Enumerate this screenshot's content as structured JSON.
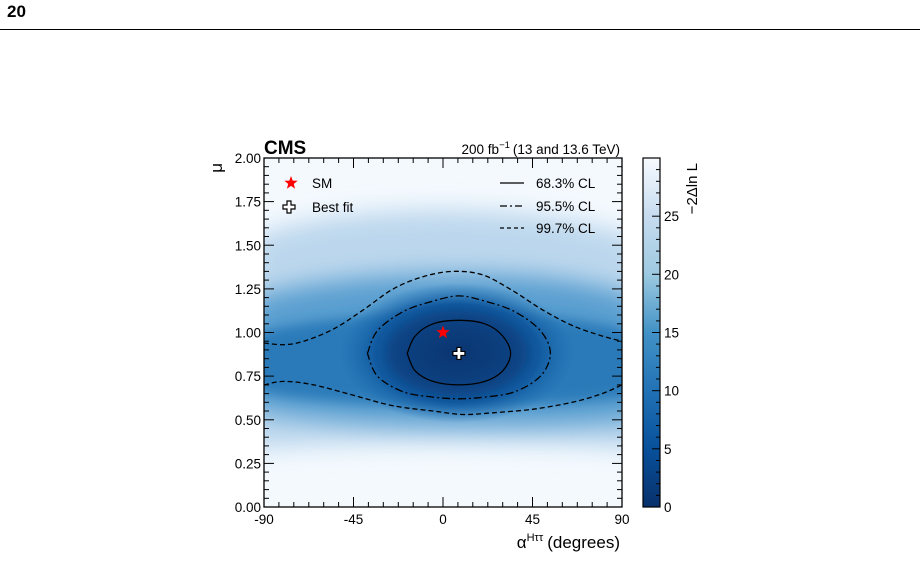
{
  "page": {
    "number": "20"
  },
  "colors": {
    "dark_blue": "#08306b",
    "mid_blue": "#2a7ab9",
    "light_blue": "#f4f9fe",
    "sm_marker": "#ff0000",
    "best_fit_marker": "#ffffff"
  },
  "chart_data": {
    "type": "heatmap",
    "experiment": "CMS",
    "luminosity": "200 fb",
    "lumi_sup": "−1",
    "energy": "(13 and 13.6 TeV)",
    "xlabel": "α",
    "xlabel_sup": "Hττ",
    "xlabel_units": "(degrees)",
    "ylabel": "μ",
    "xlim": [
      -90,
      90
    ],
    "ylim": [
      0,
      2
    ],
    "xticks": [
      "-90",
      "-45",
      "0",
      "45",
      "90"
    ],
    "yticks": [
      "0.00",
      "0.25",
      "0.50",
      "0.75",
      "1.00",
      "1.25",
      "1.50",
      "1.75",
      "2.00"
    ],
    "colorbar": {
      "label": "−2Δln L",
      "range": [
        0,
        30
      ],
      "ticks": [
        "0",
        "5",
        "10",
        "15",
        "20",
        "25"
      ],
      "colormap": "Blues (reversed)"
    },
    "points": {
      "sm": {
        "label": "SM",
        "x": 0,
        "y": 1.0
      },
      "best_fit": {
        "label": "Best fit",
        "x": 8,
        "y": 0.88
      }
    },
    "contours": [
      {
        "label": "68.3% CL",
        "style": "solid",
        "points": [
          [
            -18,
            0.88
          ],
          [
            -14,
            0.98
          ],
          [
            -5,
            1.05
          ],
          [
            8,
            1.07
          ],
          [
            21,
            1.05
          ],
          [
            30,
            0.98
          ],
          [
            34,
            0.88
          ],
          [
            30,
            0.78
          ],
          [
            21,
            0.72
          ],
          [
            8,
            0.7
          ],
          [
            -5,
            0.72
          ],
          [
            -14,
            0.78
          ],
          [
            -18,
            0.88
          ]
        ]
      },
      {
        "label": "95.5% CL",
        "style": "dashdot",
        "points": [
          [
            -38,
            0.88
          ],
          [
            -33,
            1.01
          ],
          [
            -20,
            1.12
          ],
          [
            -5,
            1.18
          ],
          [
            8,
            1.21
          ],
          [
            21,
            1.18
          ],
          [
            36,
            1.12
          ],
          [
            49,
            1.01
          ],
          [
            54,
            0.88
          ],
          [
            49,
            0.75
          ],
          [
            36,
            0.66
          ],
          [
            21,
            0.63
          ],
          [
            8,
            0.62
          ],
          [
            -5,
            0.63
          ],
          [
            -20,
            0.66
          ],
          [
            -33,
            0.75
          ],
          [
            -38,
            0.88
          ]
        ]
      },
      {
        "label": "99.7% CL",
        "style": "dashed",
        "open": true,
        "upper": [
          [
            -90,
            0.94
          ],
          [
            -80,
            0.93
          ],
          [
            -70,
            0.95
          ],
          [
            -55,
            1.02
          ],
          [
            -40,
            1.13
          ],
          [
            -25,
            1.25
          ],
          [
            -10,
            1.32
          ],
          [
            5,
            1.35
          ],
          [
            20,
            1.33
          ],
          [
            35,
            1.24
          ],
          [
            50,
            1.13
          ],
          [
            65,
            1.04
          ],
          [
            80,
            0.98
          ],
          [
            90,
            0.95
          ]
        ],
        "lower": [
          [
            -90,
            0.7
          ],
          [
            -80,
            0.72
          ],
          [
            -65,
            0.7
          ],
          [
            -45,
            0.64
          ],
          [
            -25,
            0.58
          ],
          [
            -5,
            0.55
          ],
          [
            10,
            0.53
          ],
          [
            25,
            0.54
          ],
          [
            45,
            0.56
          ],
          [
            65,
            0.6
          ],
          [
            80,
            0.65
          ],
          [
            90,
            0.7
          ]
        ]
      }
    ]
  }
}
